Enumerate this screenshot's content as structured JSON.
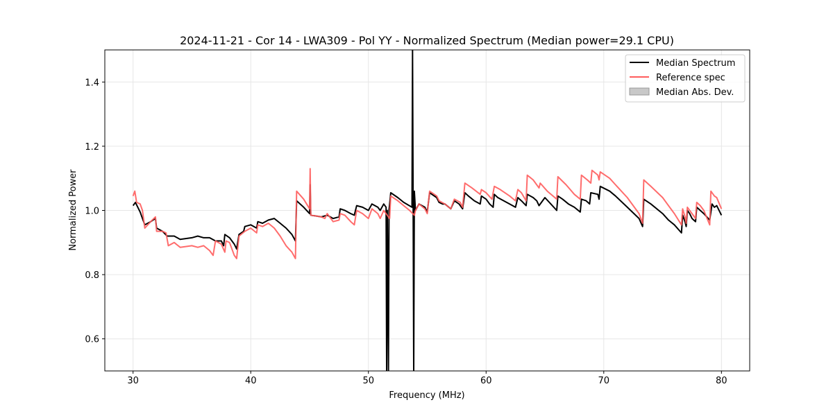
{
  "chart_data": {
    "type": "line",
    "title": "2024-11-21 - Cor 14 - LWA309 - Pol YY - Normalized Spectrum (Median power=29.1 CPU)",
    "xlabel": "Frequency (MHz)",
    "ylabel": "Normalized Power",
    "xlim": [
      27.6,
      82.4
    ],
    "ylim": [
      0.5,
      1.5
    ],
    "xticks": [
      30,
      40,
      50,
      60,
      70,
      80
    ],
    "yticks": [
      0.6,
      0.8,
      1.0,
      1.2,
      1.4
    ],
    "grid": true,
    "legend_position": "top-right",
    "legend": [
      "Median Spectrum",
      "Reference spec",
      "Median Abs. Dev."
    ],
    "colors": {
      "median": "#000000",
      "reference": "#ff5c5c",
      "mad": "#c8c8c8",
      "grid": "#e6e6e6"
    },
    "series": [
      {
        "name": "Median Spectrum",
        "points": [
          [
            30.0,
            1.015
          ],
          [
            30.2,
            1.025
          ],
          [
            30.4,
            1.01
          ],
          [
            30.6,
            0.995
          ],
          [
            30.8,
            0.975
          ],
          [
            31.0,
            0.955
          ],
          [
            31.5,
            0.965
          ],
          [
            31.9,
            0.975
          ],
          [
            32.0,
            0.945
          ],
          [
            32.5,
            0.935
          ],
          [
            32.9,
            0.92
          ],
          [
            33.5,
            0.92
          ],
          [
            34.0,
            0.91
          ],
          [
            35.0,
            0.915
          ],
          [
            35.5,
            0.92
          ],
          [
            36.0,
            0.915
          ],
          [
            36.5,
            0.915
          ],
          [
            37.0,
            0.905
          ],
          [
            37.5,
            0.905
          ],
          [
            37.7,
            0.89
          ],
          [
            37.8,
            0.925
          ],
          [
            38.2,
            0.915
          ],
          [
            38.6,
            0.895
          ],
          [
            38.8,
            0.88
          ],
          [
            39.0,
            0.925
          ],
          [
            39.4,
            0.935
          ],
          [
            39.5,
            0.95
          ],
          [
            40.0,
            0.955
          ],
          [
            40.5,
            0.945
          ],
          [
            40.6,
            0.965
          ],
          [
            41.0,
            0.96
          ],
          [
            41.5,
            0.97
          ],
          [
            42.0,
            0.975
          ],
          [
            42.5,
            0.96
          ],
          [
            43.0,
            0.945
          ],
          [
            43.5,
            0.925
          ],
          [
            43.8,
            0.905
          ],
          [
            43.9,
            1.03
          ],
          [
            44.5,
            1.01
          ],
          [
            45.0,
            0.99
          ],
          [
            45.05,
            1.08
          ],
          [
            45.1,
            0.985
          ],
          [
            46.0,
            0.98
          ],
          [
            46.5,
            0.985
          ],
          [
            47.0,
            0.975
          ],
          [
            47.5,
            0.98
          ],
          [
            47.6,
            1.005
          ],
          [
            48.0,
            1.0
          ],
          [
            48.5,
            0.99
          ],
          [
            48.8,
            0.985
          ],
          [
            49.0,
            1.015
          ],
          [
            49.5,
            1.01
          ],
          [
            50.0,
            1.0
          ],
          [
            50.3,
            1.02
          ],
          [
            50.8,
            1.01
          ],
          [
            51.0,
            1.0
          ],
          [
            51.3,
            1.02
          ],
          [
            51.5,
            1.01
          ],
          [
            51.55,
            0.5
          ],
          [
            51.6,
            1.0
          ],
          [
            51.7,
            0.5
          ],
          [
            51.75,
            1.0
          ],
          [
            51.9,
            1.055
          ],
          [
            52.5,
            1.04
          ],
          [
            53.0,
            1.025
          ],
          [
            53.7,
            1.01
          ],
          [
            53.75,
            1.5
          ],
          [
            53.8,
            1.0
          ],
          [
            53.85,
            0.5
          ],
          [
            53.9,
            1.06
          ],
          [
            54.0,
            1.0
          ],
          [
            54.3,
            1.02
          ],
          [
            54.8,
            1.01
          ],
          [
            55.0,
            0.995
          ],
          [
            55.2,
            1.055
          ],
          [
            55.8,
            1.04
          ],
          [
            56.0,
            1.025
          ],
          [
            56.3,
            1.02
          ],
          [
            56.5,
            1.02
          ],
          [
            57.0,
            1.005
          ],
          [
            57.3,
            1.03
          ],
          [
            57.7,
            1.02
          ],
          [
            58.0,
            1.005
          ],
          [
            58.2,
            1.055
          ],
          [
            58.5,
            1.045
          ],
          [
            59.0,
            1.03
          ],
          [
            59.5,
            1.02
          ],
          [
            59.6,
            1.045
          ],
          [
            60.0,
            1.035
          ],
          [
            60.3,
            1.02
          ],
          [
            60.6,
            1.01
          ],
          [
            60.7,
            1.05
          ],
          [
            61.0,
            1.04
          ],
          [
            61.5,
            1.03
          ],
          [
            62.0,
            1.02
          ],
          [
            62.5,
            1.01
          ],
          [
            62.7,
            1.04
          ],
          [
            63.0,
            1.03
          ],
          [
            63.4,
            1.015
          ],
          [
            63.5,
            1.05
          ],
          [
            64.0,
            1.04
          ],
          [
            64.3,
            1.03
          ],
          [
            64.5,
            1.015
          ],
          [
            65.0,
            1.04
          ],
          [
            65.5,
            1.02
          ],
          [
            66.0,
            1.0
          ],
          [
            66.1,
            1.045
          ],
          [
            66.5,
            1.035
          ],
          [
            67.0,
            1.02
          ],
          [
            67.5,
            1.01
          ],
          [
            68.0,
            0.995
          ],
          [
            68.1,
            1.035
          ],
          [
            68.5,
            1.03
          ],
          [
            68.8,
            1.02
          ],
          [
            68.9,
            1.055
          ],
          [
            69.5,
            1.05
          ],
          [
            69.6,
            1.035
          ],
          [
            69.7,
            1.075
          ],
          [
            70.5,
            1.06
          ],
          [
            71.0,
            1.045
          ],
          [
            72.0,
            1.01
          ],
          [
            73.0,
            0.975
          ],
          [
            73.3,
            0.95
          ],
          [
            73.4,
            1.035
          ],
          [
            74.0,
            1.02
          ],
          [
            75.0,
            0.99
          ],
          [
            75.5,
            0.97
          ],
          [
            76.0,
            0.955
          ],
          [
            76.6,
            0.93
          ],
          [
            76.7,
            0.985
          ],
          [
            76.9,
            0.965
          ],
          [
            77.0,
            0.95
          ],
          [
            77.1,
            1.0
          ],
          [
            77.3,
            0.99
          ],
          [
            77.5,
            0.975
          ],
          [
            77.8,
            0.965
          ],
          [
            77.9,
            1.01
          ],
          [
            78.2,
            1.0
          ],
          [
            78.5,
            0.99
          ],
          [
            79.0,
            0.97
          ],
          [
            79.2,
            1.02
          ],
          [
            79.4,
            1.01
          ],
          [
            79.6,
            1.015
          ],
          [
            80.0,
            0.985
          ]
        ]
      },
      {
        "name": "Reference spec",
        "points": [
          [
            30.0,
            1.045
          ],
          [
            30.15,
            1.06
          ],
          [
            30.3,
            1.025
          ],
          [
            30.6,
            1.02
          ],
          [
            30.8,
            1.0
          ],
          [
            31.0,
            0.945
          ],
          [
            31.5,
            0.965
          ],
          [
            31.9,
            0.98
          ],
          [
            32.0,
            0.935
          ],
          [
            32.5,
            0.935
          ],
          [
            32.8,
            0.93
          ],
          [
            33.0,
            0.89
          ],
          [
            33.5,
            0.9
          ],
          [
            34.0,
            0.885
          ],
          [
            35.0,
            0.89
          ],
          [
            35.5,
            0.885
          ],
          [
            36.0,
            0.89
          ],
          [
            36.5,
            0.875
          ],
          [
            36.8,
            0.86
          ],
          [
            37.0,
            0.905
          ],
          [
            37.5,
            0.895
          ],
          [
            37.8,
            0.87
          ],
          [
            37.9,
            0.905
          ],
          [
            38.2,
            0.9
          ],
          [
            38.6,
            0.86
          ],
          [
            38.8,
            0.85
          ],
          [
            39.0,
            0.92
          ],
          [
            39.5,
            0.935
          ],
          [
            40.0,
            0.945
          ],
          [
            40.5,
            0.93
          ],
          [
            40.6,
            0.955
          ],
          [
            41.0,
            0.95
          ],
          [
            41.5,
            0.96
          ],
          [
            42.0,
            0.945
          ],
          [
            42.5,
            0.92
          ],
          [
            43.0,
            0.89
          ],
          [
            43.5,
            0.87
          ],
          [
            43.8,
            0.85
          ],
          [
            43.9,
            1.06
          ],
          [
            44.5,
            1.035
          ],
          [
            45.0,
            1.005
          ],
          [
            45.05,
            1.13
          ],
          [
            45.1,
            0.985
          ],
          [
            46.0,
            0.98
          ],
          [
            46.3,
            0.975
          ],
          [
            46.5,
            0.99
          ],
          [
            47.0,
            0.965
          ],
          [
            47.5,
            0.97
          ],
          [
            47.6,
            0.99
          ],
          [
            48.0,
            0.985
          ],
          [
            48.5,
            0.965
          ],
          [
            48.8,
            0.955
          ],
          [
            49.0,
            1.0
          ],
          [
            49.5,
            0.99
          ],
          [
            50.0,
            0.975
          ],
          [
            50.3,
            1.005
          ],
          [
            50.8,
            0.99
          ],
          [
            51.0,
            0.975
          ],
          [
            51.3,
            1.0
          ],
          [
            51.8,
            0.975
          ],
          [
            51.9,
            1.045
          ],
          [
            52.5,
            1.03
          ],
          [
            53.0,
            1.015
          ],
          [
            53.5,
            1.0
          ],
          [
            53.9,
            0.985
          ],
          [
            54.0,
            1.0
          ],
          [
            54.3,
            1.02
          ],
          [
            54.8,
            1.005
          ],
          [
            55.0,
            0.99
          ],
          [
            55.2,
            1.06
          ],
          [
            55.8,
            1.045
          ],
          [
            56.0,
            1.03
          ],
          [
            56.5,
            1.02
          ],
          [
            57.0,
            1.005
          ],
          [
            57.3,
            1.035
          ],
          [
            57.8,
            1.025
          ],
          [
            58.0,
            1.01
          ],
          [
            58.2,
            1.085
          ],
          [
            58.8,
            1.07
          ],
          [
            59.5,
            1.05
          ],
          [
            59.6,
            1.065
          ],
          [
            60.0,
            1.055
          ],
          [
            60.5,
            1.035
          ],
          [
            60.7,
            1.075
          ],
          [
            61.2,
            1.065
          ],
          [
            62.0,
            1.045
          ],
          [
            62.5,
            1.03
          ],
          [
            62.7,
            1.065
          ],
          [
            63.0,
            1.055
          ],
          [
            63.4,
            1.03
          ],
          [
            63.5,
            1.11
          ],
          [
            64.0,
            1.095
          ],
          [
            64.5,
            1.07
          ],
          [
            64.6,
            1.085
          ],
          [
            65.2,
            1.06
          ],
          [
            66.0,
            1.035
          ],
          [
            66.1,
            1.105
          ],
          [
            66.8,
            1.08
          ],
          [
            67.5,
            1.05
          ],
          [
            68.0,
            1.035
          ],
          [
            68.1,
            1.11
          ],
          [
            68.6,
            1.095
          ],
          [
            68.9,
            1.085
          ],
          [
            69.0,
            1.125
          ],
          [
            69.5,
            1.11
          ],
          [
            69.6,
            1.095
          ],
          [
            69.7,
            1.12
          ],
          [
            70.5,
            1.1
          ],
          [
            71.0,
            1.08
          ],
          [
            72.0,
            1.04
          ],
          [
            73.0,
            0.99
          ],
          [
            73.3,
            0.96
          ],
          [
            73.4,
            1.095
          ],
          [
            74.0,
            1.075
          ],
          [
            75.0,
            1.04
          ],
          [
            75.5,
            1.015
          ],
          [
            76.0,
            0.99
          ],
          [
            76.6,
            0.955
          ],
          [
            76.7,
            1.005
          ],
          [
            76.9,
            0.98
          ],
          [
            77.0,
            0.96
          ],
          [
            77.1,
            1.01
          ],
          [
            77.3,
            1.0
          ],
          [
            77.5,
            0.99
          ],
          [
            77.8,
            0.975
          ],
          [
            77.9,
            1.025
          ],
          [
            78.2,
            1.015
          ],
          [
            78.5,
            1.0
          ],
          [
            79.0,
            0.955
          ],
          [
            79.1,
            1.06
          ],
          [
            79.4,
            1.045
          ],
          [
            79.6,
            1.04
          ],
          [
            80.0,
            1.005
          ]
        ]
      }
    ]
  }
}
